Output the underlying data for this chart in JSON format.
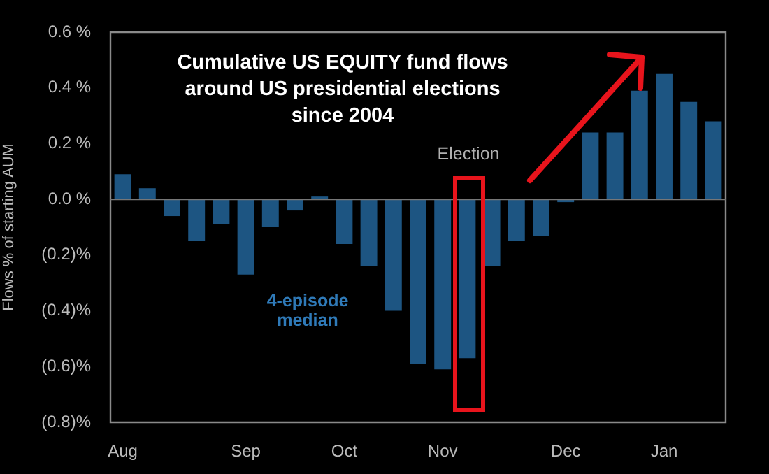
{
  "chart_data": {
    "type": "bar",
    "title": "Cumulative US EQUITY fund flows\naround US presidential elections\nsince 2004",
    "ylabel": "Flows % of starting AUM",
    "categories": [
      "Aug",
      null,
      null,
      null,
      null,
      "Sep",
      null,
      null,
      null,
      "Oct",
      null,
      null,
      null,
      "Nov",
      null,
      null,
      null,
      null,
      "Dec",
      null,
      null,
      null,
      "Jan",
      null,
      null
    ],
    "values": [
      0.09,
      0.04,
      -0.06,
      -0.15,
      -0.09,
      -0.27,
      -0.1,
      -0.04,
      0.01,
      -0.16,
      -0.24,
      -0.4,
      -0.59,
      -0.61,
      -0.57,
      -0.24,
      -0.15,
      -0.13,
      -0.01,
      0.24,
      0.24,
      0.39,
      0.45,
      0.35,
      0.28
    ],
    "color": "#1d5582",
    "ylim": [
      -0.8,
      0.6
    ],
    "yticks": [
      {
        "value": 0.6,
        "label": "0.6 %"
      },
      {
        "value": 0.4,
        "label": "0.4 %"
      },
      {
        "value": 0.2,
        "label": "0.2 %"
      },
      {
        "value": 0,
        "label": "0.0 %"
      },
      {
        "value": -0.2,
        "label": "(0.2)%"
      },
      {
        "value": -0.4,
        "label": "(0.4)%"
      },
      {
        "value": -0.6,
        "label": "(0.6)%"
      },
      {
        "value": -0.8,
        "label": "(0.8)%"
      }
    ],
    "annotations": [
      "Election",
      "4-episode median"
    ],
    "ref_lines": [
      {
        "axis": "y",
        "value": 0,
        "color": "#777777"
      }
    ],
    "grid": false,
    "legend": false
  }
}
